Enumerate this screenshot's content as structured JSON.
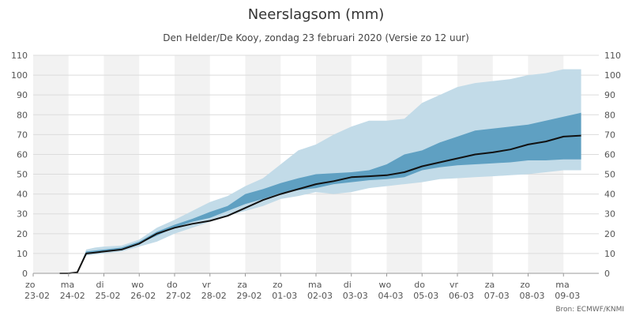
{
  "chart_data": {
    "type": "area",
    "title": "Neerslagsom (mm)",
    "subtitle": "Den Helder/De Kooy, zondag 23 februari 2020 (Versie zo 12 uur)",
    "credit": "Bron: ECMWF/KNMI",
    "ylim": [
      0,
      110
    ],
    "yticks": [
      0,
      10,
      20,
      30,
      40,
      50,
      60,
      70,
      80,
      90,
      100,
      110
    ],
    "xlim": [
      0,
      16
    ],
    "x_ticks": [
      {
        "day": "zo",
        "date": "23-02"
      },
      {
        "day": "ma",
        "date": "24-02"
      },
      {
        "day": "di",
        "date": "25-02"
      },
      {
        "day": "wo",
        "date": "26-02"
      },
      {
        "day": "do",
        "date": "27-02"
      },
      {
        "day": "vr",
        "date": "28-02"
      },
      {
        "day": "za",
        "date": "29-02"
      },
      {
        "day": "zo",
        "date": "01-03"
      },
      {
        "day": "ma",
        "date": "02-03"
      },
      {
        "day": "di",
        "date": "03-03"
      },
      {
        "day": "wo",
        "date": "04-03"
      },
      {
        "day": "do",
        "date": "05-03"
      },
      {
        "day": "vr",
        "date": "06-03"
      },
      {
        "day": "za",
        "date": "07-03"
      },
      {
        "day": "zo",
        "date": "08-03"
      },
      {
        "day": "ma",
        "date": "09-03"
      }
    ],
    "x_days": [
      0.75,
      1,
      1.25,
      1.5,
      1.75,
      2,
      2.5,
      3,
      3.5,
      4,
      4.5,
      5,
      5.5,
      6,
      6.5,
      7,
      7.5,
      8,
      8.5,
      9,
      9.5,
      10,
      10.5,
      11,
      11.5,
      12,
      12.5,
      13,
      13.5,
      14,
      14.5,
      15,
      15.5
    ],
    "series": [
      {
        "color": "#c2dbe8",
        "lower": [
          0,
          0,
          0.5,
          9,
          9.5,
          10,
          11,
          13.5,
          16,
          20,
          23,
          26,
          29,
          31.5,
          34,
          37.5,
          39,
          41,
          40,
          41,
          43,
          44,
          45,
          46,
          47.5,
          48,
          48.5,
          49,
          49.5,
          50,
          51,
          52,
          52
        ],
        "upper": [
          0,
          0,
          0.5,
          12,
          13,
          13.5,
          14,
          17,
          23,
          27,
          31.5,
          36,
          39,
          44,
          48,
          55,
          62,
          65,
          70,
          74,
          77,
          77,
          78,
          86,
          90,
          94,
          96,
          97,
          98,
          100,
          101,
          103,
          103
        ]
      },
      {
        "color": "#5fa0c2",
        "lower": [
          0,
          0,
          0.5,
          10,
          10.5,
          11,
          12,
          15,
          19,
          23,
          26,
          28,
          31.5,
          35,
          37.5,
          40.5,
          42,
          43,
          45,
          46,
          47,
          47.5,
          48.5,
          52,
          53.5,
          54.5,
          55,
          55.5,
          56,
          57,
          57,
          57.5,
          57.5
        ],
        "upper": [
          0,
          0,
          0.5,
          11,
          11.5,
          12,
          13,
          16,
          21,
          24.5,
          27.5,
          31,
          34,
          40,
          42.5,
          45.5,
          48,
          50,
          50.5,
          51,
          52,
          55,
          60,
          62,
          66,
          69,
          72,
          73,
          74,
          75,
          77,
          79,
          81
        ]
      }
    ],
    "median": [
      0,
      0,
      0.5,
      10,
      10.5,
      11,
      12,
      15,
      20,
      23,
      25,
      26.5,
      29,
      33,
      37,
      40,
      42.5,
      45,
      46.5,
      48.5,
      49,
      49.5,
      51,
      54,
      56,
      58,
      60,
      61,
      62.5,
      65,
      66.5,
      69,
      69.5
    ]
  }
}
